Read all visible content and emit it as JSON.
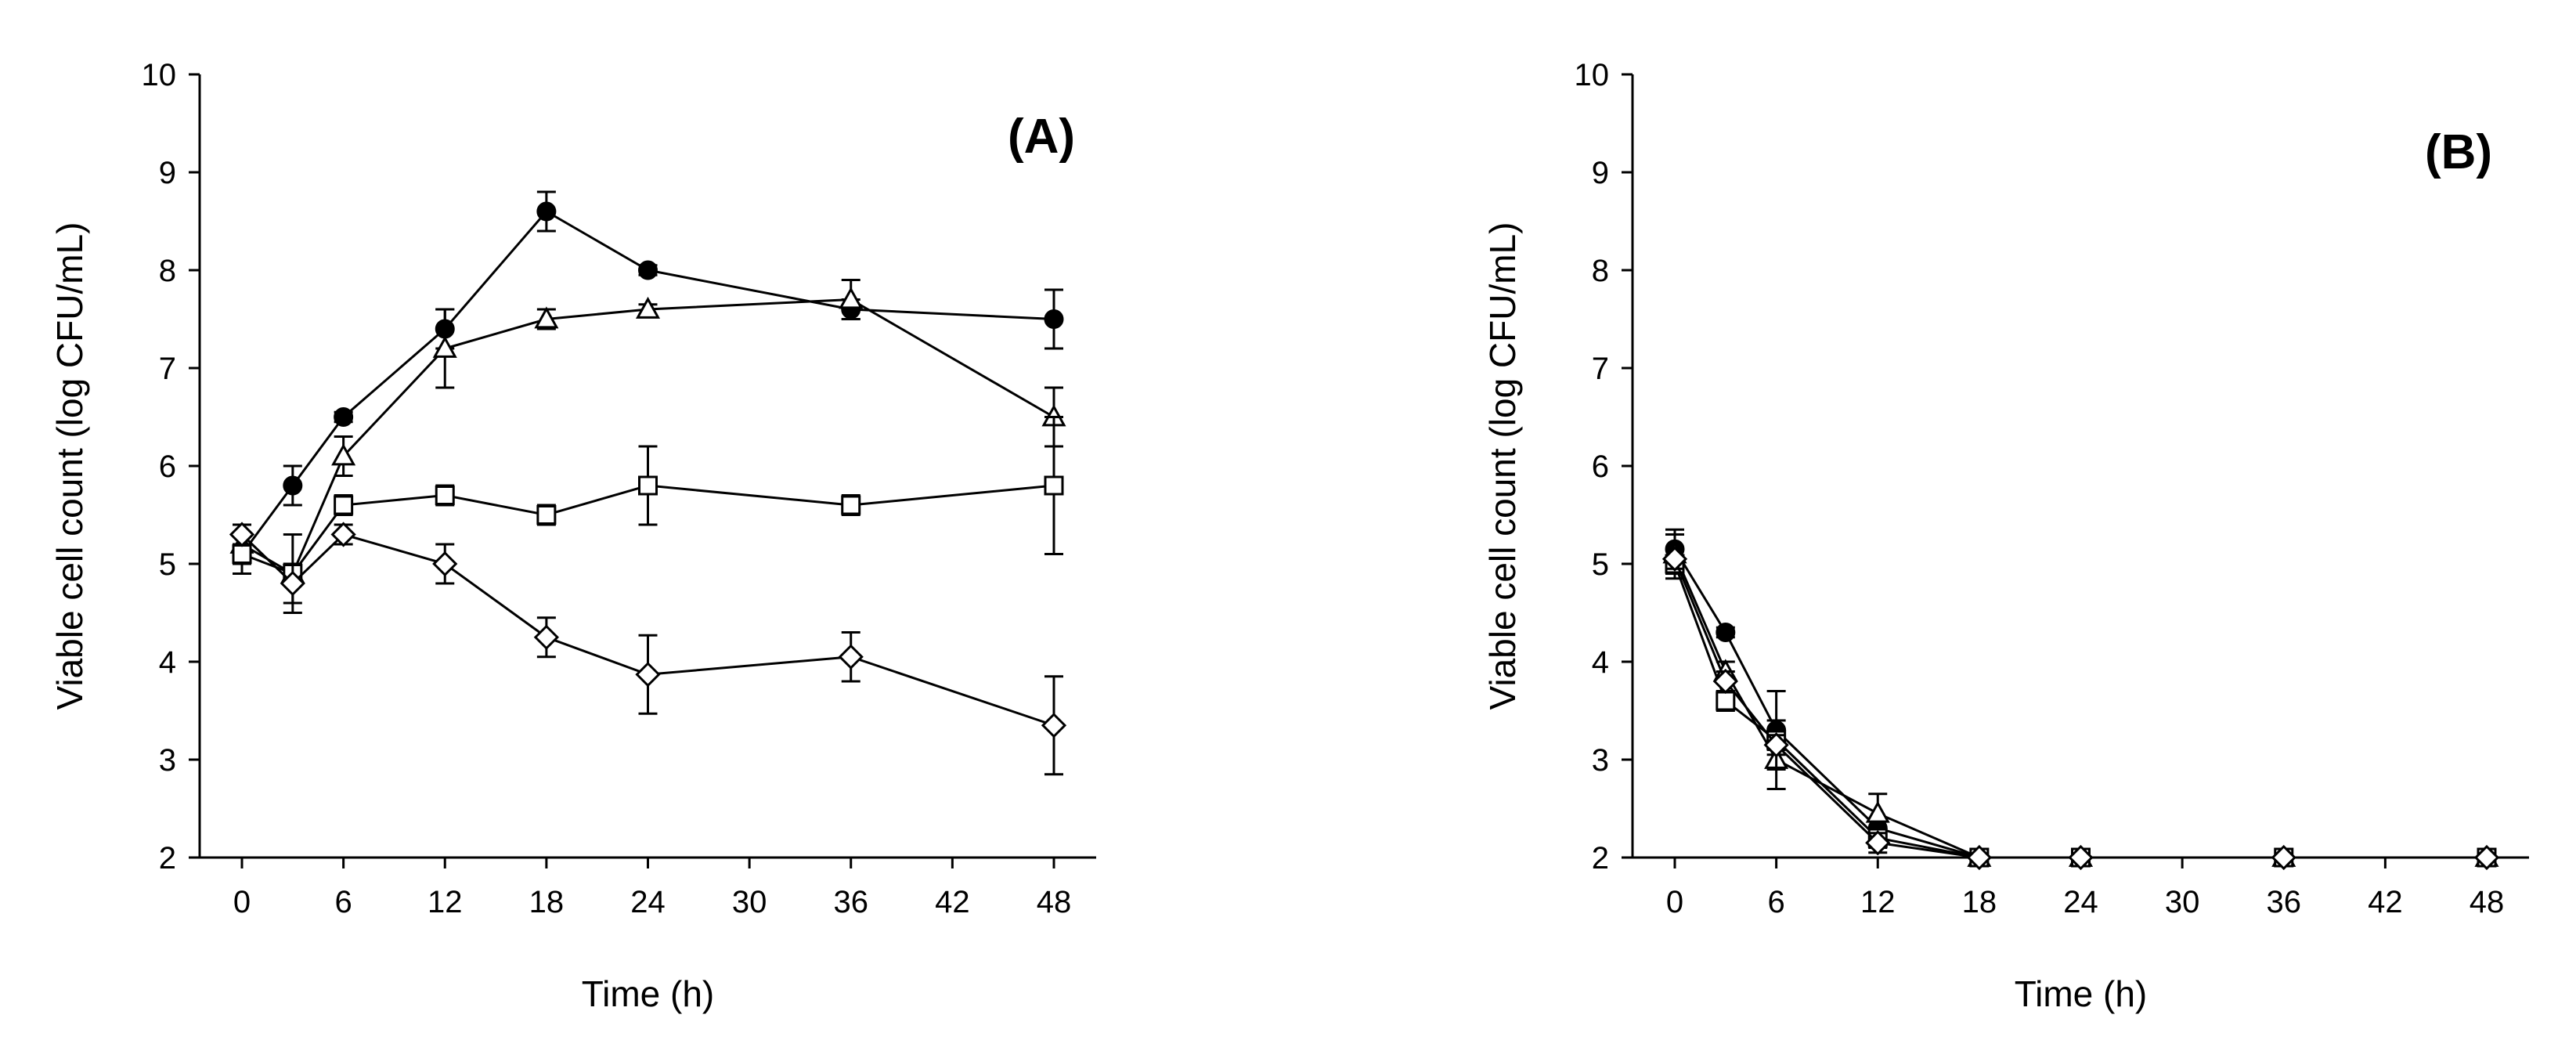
{
  "chart_data": [
    {
      "type": "line",
      "panel_label": "(A)",
      "xlabel": "Time (h)",
      "ylabel": "Viable cell count (log CFU/mL)",
      "xlim": [
        -2.5,
        50.5
      ],
      "ylim": [
        2,
        10
      ],
      "xticks": [
        0,
        6,
        12,
        18,
        24,
        30,
        36,
        42,
        48
      ],
      "yticks": [
        2,
        3,
        4,
        5,
        6,
        7,
        8,
        9,
        10
      ],
      "grid": false,
      "series": [
        {
          "name": "filled circle",
          "marker": "circle-filled",
          "x": [
            0,
            3,
            6,
            12,
            18,
            24,
            36,
            48
          ],
          "y": [
            5.1,
            5.8,
            6.5,
            7.4,
            8.6,
            8.0,
            7.6,
            7.5
          ],
          "err": [
            0.1,
            0.2,
            0.05,
            0.2,
            0.2,
            0.05,
            0.1,
            0.3
          ]
        },
        {
          "name": "open triangle",
          "marker": "triangle-open",
          "x": [
            0,
            3,
            6,
            12,
            18,
            24,
            36,
            48
          ],
          "y": [
            5.2,
            4.9,
            6.1,
            7.2,
            7.5,
            7.6,
            7.7,
            6.5
          ],
          "err": [
            0.1,
            0.1,
            0.2,
            0.4,
            0.1,
            0.05,
            0.2,
            0.3
          ]
        },
        {
          "name": "open square",
          "marker": "square-open",
          "x": [
            0,
            3,
            6,
            12,
            18,
            24,
            36,
            48
          ],
          "y": [
            5.1,
            4.9,
            5.6,
            5.7,
            5.5,
            5.8,
            5.6,
            5.8
          ],
          "err": [
            0.2,
            0.4,
            0.1,
            0.1,
            0.1,
            0.4,
            0.1,
            0.7
          ]
        },
        {
          "name": "open diamond",
          "marker": "diamond-open",
          "x": [
            0,
            3,
            6,
            12,
            18,
            24,
            36,
            48
          ],
          "y": [
            5.3,
            4.8,
            5.3,
            5.0,
            4.25,
            3.87,
            4.05,
            3.35
          ],
          "err": [
            0.1,
            0.2,
            0.1,
            0.2,
            0.2,
            0.4,
            0.25,
            0.5
          ]
        }
      ]
    },
    {
      "type": "line",
      "panel_label": "(B)",
      "xlabel": "Time (h)",
      "ylabel": "Viable cell count (log CFU/mL)",
      "xlim": [
        -2.5,
        50.5
      ],
      "ylim": [
        2,
        10
      ],
      "xticks": [
        0,
        6,
        12,
        18,
        24,
        30,
        36,
        42,
        48
      ],
      "yticks": [
        2,
        3,
        4,
        5,
        6,
        7,
        8,
        9,
        10
      ],
      "grid": false,
      "series": [
        {
          "name": "filled circle",
          "marker": "circle-filled",
          "x": [
            0,
            3,
            6,
            12,
            18,
            24,
            36,
            48
          ],
          "y": [
            5.15,
            4.3,
            3.3,
            2.3,
            2.0,
            2.0,
            2.0,
            2.0
          ],
          "err": [
            0.2,
            0.05,
            0.1,
            0.1,
            0,
            0,
            0,
            0
          ]
        },
        {
          "name": "open triangle",
          "marker": "triangle-open",
          "x": [
            0,
            3,
            6,
            12,
            18,
            24,
            36,
            48
          ],
          "y": [
            5.1,
            3.9,
            3.0,
            2.45,
            2.0,
            2.0,
            2.0,
            2.0
          ],
          "err": [
            0.2,
            0.1,
            0.1,
            0.2,
            0,
            0,
            0,
            0
          ]
        },
        {
          "name": "open square",
          "marker": "square-open",
          "x": [
            0,
            3,
            6,
            12,
            18,
            24,
            36,
            48
          ],
          "y": [
            5.0,
            3.6,
            3.2,
            2.2,
            2.0,
            2.0,
            2.0,
            2.0
          ],
          "err": [
            0.15,
            0.1,
            0.5,
            0.1,
            0,
            0,
            0,
            0
          ]
        },
        {
          "name": "open diamond",
          "marker": "diamond-open",
          "x": [
            0,
            3,
            6,
            12,
            18,
            24,
            36,
            48
          ],
          "y": [
            5.05,
            3.8,
            3.15,
            2.15,
            2.0,
            2.0,
            2.0,
            2.0
          ],
          "err": [
            0.1,
            0.1,
            0.1,
            0.1,
            0,
            0,
            0,
            0
          ]
        }
      ]
    }
  ]
}
